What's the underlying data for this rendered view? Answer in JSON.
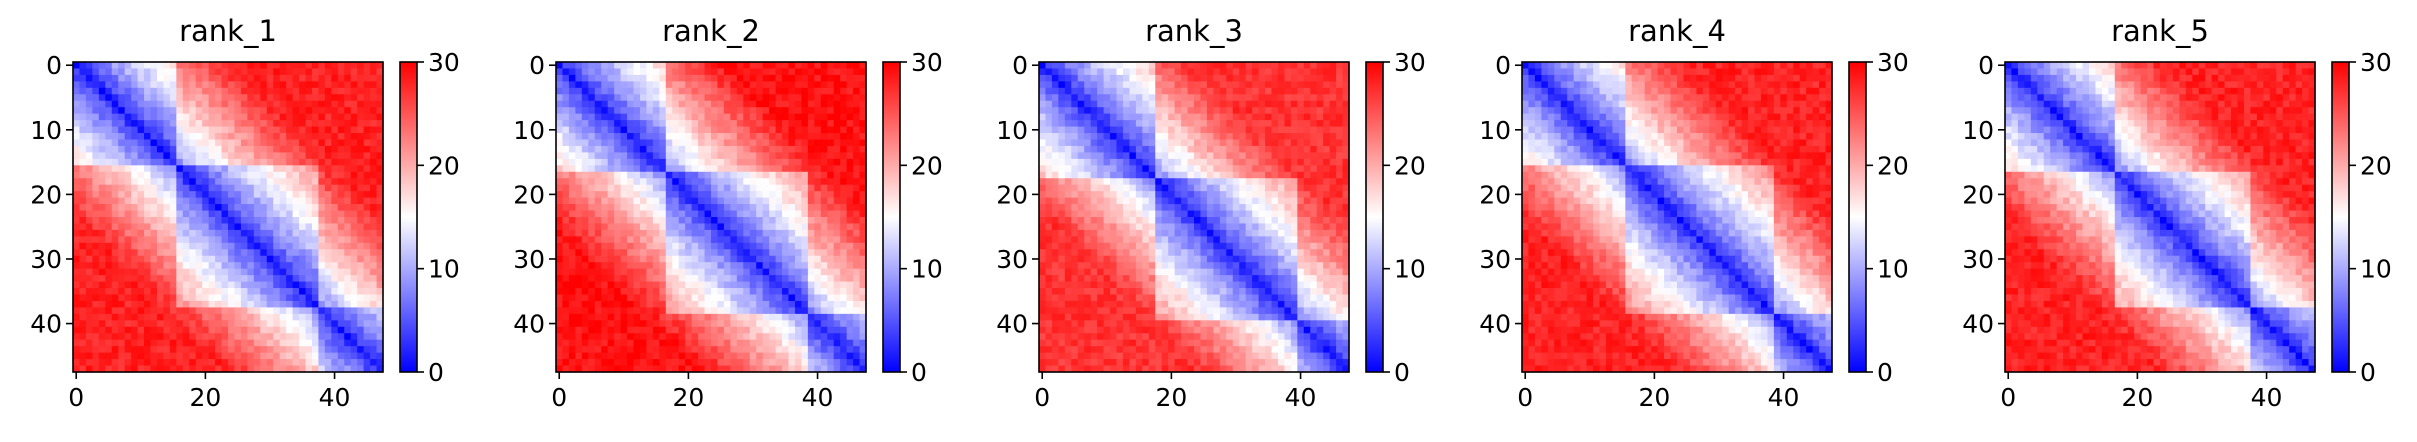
{
  "chart_data": [
    {
      "type": "heatmap",
      "title": "rank_1",
      "n": 48,
      "xticks": [
        0,
        20,
        40
      ],
      "yticks": [
        0,
        10,
        20,
        30,
        40
      ],
      "colorbar": {
        "min": 0,
        "max": 30,
        "ticks": [
          0,
          10,
          20,
          30
        ]
      },
      "colormap": [
        "#0000ff",
        "#ffffff",
        "#ff0000"
      ],
      "domains": [
        [
          0,
          16
        ],
        [
          16,
          38
        ],
        [
          38,
          48
        ]
      ],
      "background_level": 28
    },
    {
      "type": "heatmap",
      "title": "rank_2",
      "n": 48,
      "xticks": [
        0,
        20,
        40
      ],
      "yticks": [
        0,
        10,
        20,
        30,
        40
      ],
      "colorbar": {
        "min": 0,
        "max": 30,
        "ticks": [
          0,
          10,
          20,
          30
        ]
      },
      "colormap": [
        "#0000ff",
        "#ffffff",
        "#ff0000"
      ],
      "domains": [
        [
          0,
          17
        ],
        [
          17,
          39
        ],
        [
          39,
          48
        ]
      ],
      "background_level": 29
    },
    {
      "type": "heatmap",
      "title": "rank_3",
      "n": 48,
      "xticks": [
        0,
        20,
        40
      ],
      "yticks": [
        0,
        10,
        20,
        30,
        40
      ],
      "colorbar": {
        "min": 0,
        "max": 30,
        "ticks": [
          0,
          10,
          20,
          30
        ]
      },
      "colormap": [
        "#0000ff",
        "#ffffff",
        "#ff0000"
      ],
      "domains": [
        [
          0,
          18
        ],
        [
          18,
          40
        ],
        [
          40,
          48
        ]
      ],
      "background_level": 27
    },
    {
      "type": "heatmap",
      "title": "rank_4",
      "n": 48,
      "xticks": [
        0,
        20,
        40
      ],
      "yticks": [
        0,
        10,
        20,
        30,
        40
      ],
      "colorbar": {
        "min": 0,
        "max": 30,
        "ticks": [
          0,
          10,
          20,
          30
        ]
      },
      "colormap": [
        "#0000ff",
        "#ffffff",
        "#ff0000"
      ],
      "domains": [
        [
          0,
          16
        ],
        [
          16,
          39
        ],
        [
          39,
          48
        ]
      ],
      "background_level": 28
    },
    {
      "type": "heatmap",
      "title": "rank_5",
      "n": 48,
      "xticks": [
        0,
        20,
        40
      ],
      "yticks": [
        0,
        10,
        20,
        30,
        40
      ],
      "colorbar": {
        "min": 0,
        "max": 30,
        "ticks": [
          0,
          10,
          20,
          30
        ]
      },
      "colormap": [
        "#0000ff",
        "#ffffff",
        "#ff0000"
      ],
      "domains": [
        [
          0,
          17
        ],
        [
          17,
          38
        ],
        [
          38,
          48
        ]
      ],
      "background_level": 28
    }
  ]
}
